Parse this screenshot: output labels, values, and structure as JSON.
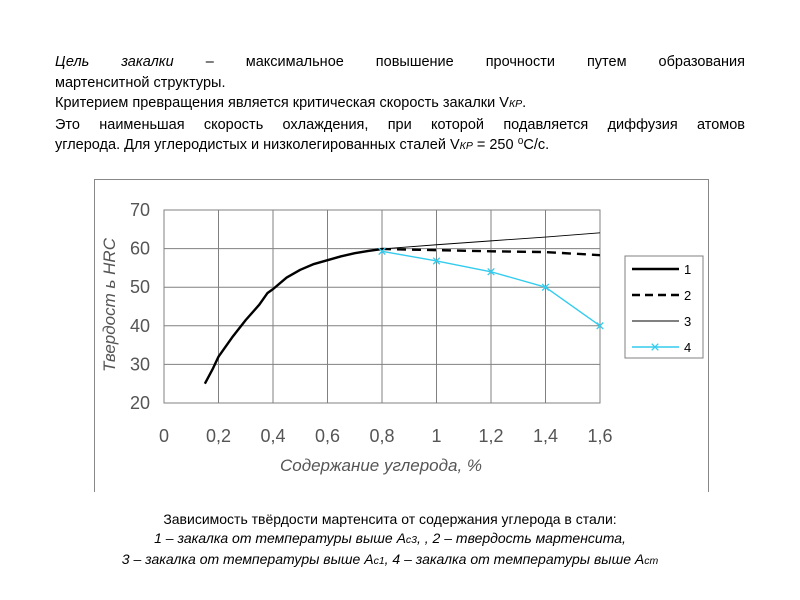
{
  "intro": {
    "line1_lead": "Цель закалки",
    "line1_rest": " – максимальное повышение прочности путем образования",
    "line2": "мартенситной структуры.",
    "line3_pre": "Критерием превращения является критическая скорость закалки V",
    "line3_sub": "КР",
    "line3_post": ".",
    "line4": "Это наименьшая скорость охлаждения, при которой подавляется диффузия атомов",
    "line5_pre": "углерода. Для углеродистых и низколегированных сталей V",
    "line5_sub": "КР",
    "line5_post": " = 250 ⁰С/с."
  },
  "chart_data": {
    "type": "line",
    "title": "",
    "xlabel": "Содержание углерода, %",
    "ylabel": "Твердост ь HRC",
    "xlim": [
      0,
      1.6
    ],
    "ylim": [
      20,
      70
    ],
    "xticks": [
      "0",
      "0,2",
      "0,4",
      "0,6",
      "0,8",
      "1",
      "1,2",
      "1,4",
      "1,6"
    ],
    "xtick_values": [
      0,
      0.2,
      0.4,
      0.6,
      0.8,
      1.0,
      1.2,
      1.4,
      1.6
    ],
    "yticks": [
      "20",
      "30",
      "40",
      "50",
      "60",
      "70"
    ],
    "ytick_values": [
      20,
      30,
      40,
      50,
      60,
      70
    ],
    "grid": true,
    "legend_position": "right",
    "series": [
      {
        "name": "1",
        "style": "solid-thick",
        "color": "#000000",
        "points": [
          [
            0.15,
            25
          ],
          [
            0.18,
            29
          ],
          [
            0.2,
            32
          ],
          [
            0.25,
            37
          ],
          [
            0.3,
            41.5
          ],
          [
            0.35,
            45.5
          ],
          [
            0.38,
            48.5
          ],
          [
            0.4,
            49.5
          ],
          [
            0.45,
            52.5
          ],
          [
            0.5,
            54.5
          ],
          [
            0.55,
            56
          ],
          [
            0.6,
            57
          ],
          [
            0.65,
            58
          ],
          [
            0.7,
            58.8
          ],
          [
            0.75,
            59.4
          ],
          [
            0.8,
            59.9
          ]
        ]
      },
      {
        "name": "2",
        "style": "dashed",
        "color": "#000000",
        "points": [
          [
            0.8,
            59.9
          ],
          [
            1.0,
            59.6
          ],
          [
            1.2,
            59.3
          ],
          [
            1.4,
            59.1
          ],
          [
            1.6,
            58.3
          ]
        ]
      },
      {
        "name": "3",
        "style": "solid-thin",
        "color": "#000000",
        "points": [
          [
            0.8,
            59.9
          ],
          [
            1.0,
            61
          ],
          [
            1.2,
            62
          ],
          [
            1.4,
            63
          ],
          [
            1.6,
            64.1
          ]
        ]
      },
      {
        "name": "4",
        "style": "solid-markers",
        "color": "#33ccee",
        "points": [
          [
            0.8,
            59.3
          ],
          [
            1.0,
            56.8
          ],
          [
            1.2,
            54
          ],
          [
            1.4,
            50
          ],
          [
            1.6,
            40
          ]
        ]
      }
    ]
  },
  "caption": {
    "line1": "Зависимость твёрдости мартенсита от содержания углерода в стали:",
    "line2_pre": "1 – закалка от температуры выше ",
    "line2_A1": "А",
    "line2_A1sub": "с3",
    "line2_mid": ", , 2 – твердость мартенсита,",
    "line3_pre": "3 – закалка от температуры выше ",
    "line3_A": "А",
    "line3_Asub": "с1",
    "line3_mid": ", 4 – закалка от температуры выше ",
    "line3_B": "А",
    "line3_Bsub": "cm"
  }
}
